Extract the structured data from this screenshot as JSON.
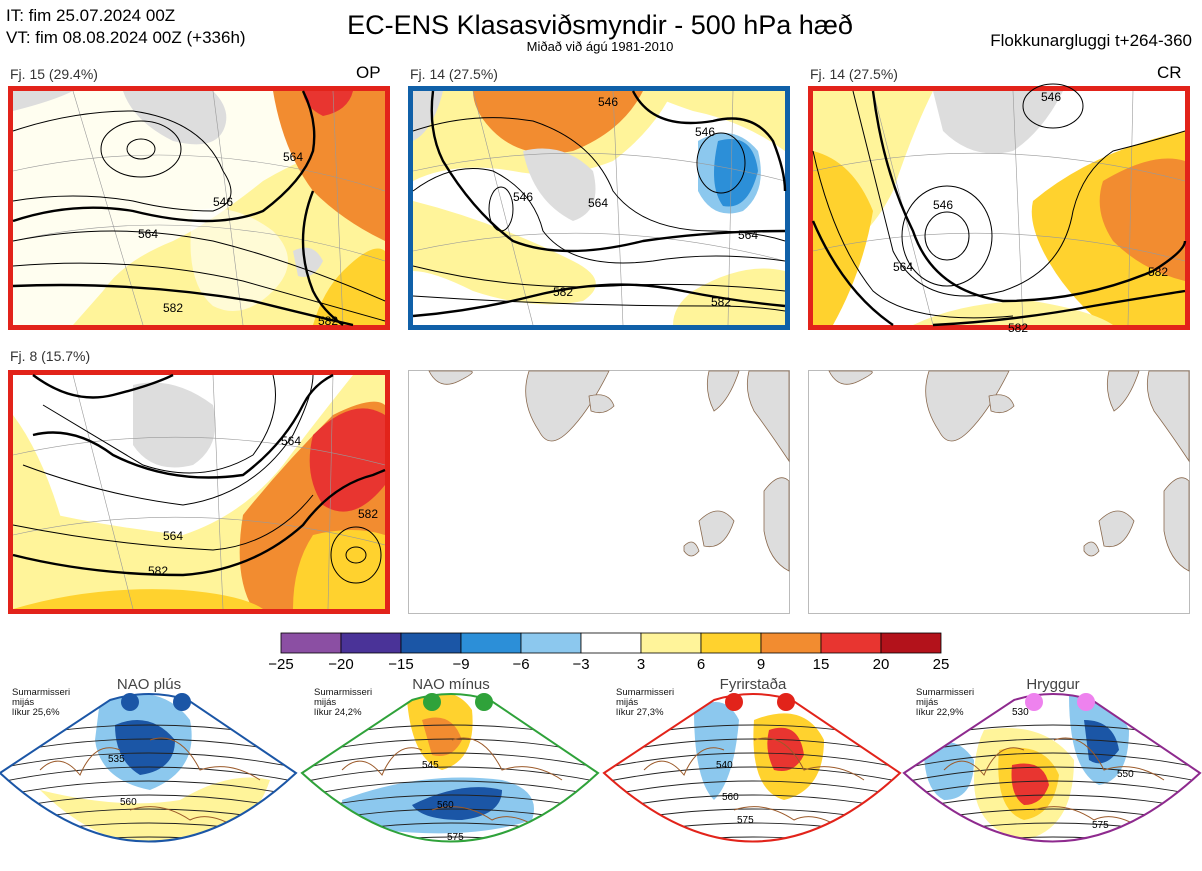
{
  "header": {
    "init_line": "IT: fim 25.07.2024 00Z",
    "valid_line": "VT: fim 08.08.2024 00Z  (+336h)",
    "title": "EC-ENS Klasasviðsmyndir - 500 hPa hæð",
    "subtitle": "Miðað við ágú 1981-2010",
    "window": "Flokkunargluggi t+264-360"
  },
  "panels": [
    {
      "label": "Fj. 15 (29.4%)",
      "tag": "OP",
      "border": "#e2231a",
      "contours": [
        "546",
        "564",
        "564",
        "582",
        "582"
      ]
    },
    {
      "label": "Fj. 14 (27.5%)",
      "tag": "",
      "border": "#1060a8",
      "contours": [
        "546",
        "546",
        "564",
        "564",
        "582",
        "582",
        "546"
      ]
    },
    {
      "label": "Fj. 14 (27.5%)",
      "tag": "CR",
      "border": "#e2231a",
      "contours": [
        "546",
        "546",
        "564",
        "582",
        "582"
      ]
    },
    {
      "label": "Fj. 8 (15.7%)",
      "tag": "",
      "border": "#e2231a",
      "contours": [
        "564",
        "564",
        "582",
        "582"
      ]
    }
  ],
  "colorbar": {
    "ticks": [
      "−25",
      "−20",
      "−15",
      "−9",
      "−6",
      "−3",
      "3",
      "6",
      "9",
      "15",
      "20",
      "25"
    ],
    "colors": [
      "#8b4fa3",
      "#4a3398",
      "#1b56a6",
      "#2c8fd8",
      "#8cc8ee",
      "#ffffff",
      "#fff49a",
      "#ffd22e",
      "#f28c30",
      "#e83530",
      "#b3121b"
    ]
  },
  "regimes": [
    {
      "title": "NAO plús",
      "note": [
        "Sumarmisseri",
        "mijás",
        "líkur 25,6%"
      ],
      "border": "#1b56a6",
      "dot": "#1b56a6",
      "contours": [
        "535",
        "560"
      ]
    },
    {
      "title": "NAO mínus",
      "note": [
        "Sumarmisseri",
        "mijás",
        "líkur 24,2%"
      ],
      "border": "#2fa23a",
      "dot": "#2fa23a",
      "contours": [
        "545",
        "560",
        "575"
      ]
    },
    {
      "title": "Fyrirstaða",
      "note": [
        "Sumarmisseri",
        "mijás",
        "líkur 27,3%"
      ],
      "border": "#e2231a",
      "dot": "#e2231a",
      "contours": [
        "540",
        "560",
        "575"
      ]
    },
    {
      "title": "Hryggur",
      "note": [
        "Sumarmisseri",
        "mijás",
        "líkur 22,9%"
      ],
      "border": "#8e2a8e",
      "dot": "#ee82ee",
      "contours": [
        "530",
        "550",
        "575"
      ]
    }
  ]
}
